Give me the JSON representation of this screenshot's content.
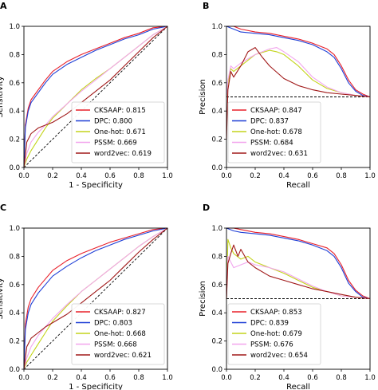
{
  "colors": {
    "series": [
      "#e8202a",
      "#1f3fd6",
      "#c3d41b",
      "#f2a6ee",
      "#a01818"
    ],
    "reference": "#000000",
    "axis": "#000000"
  },
  "chart_data": [
    {
      "panel": "A",
      "type": "line",
      "xlabel": "1 - Specificity",
      "ylabel": "Sensitivity",
      "xlim": [
        0,
        1
      ],
      "ylim": [
        0,
        1
      ],
      "xticks": [
        "0.0",
        "0.2",
        "0.4",
        "0.6",
        "0.8",
        "1.0"
      ],
      "yticks": [
        "0.0",
        "0.2",
        "0.4",
        "0.6",
        "0.8",
        "1.0"
      ],
      "legend_position": "bottom-right",
      "grid": false,
      "reference_line": {
        "style": "dashed",
        "from": [
          0,
          0
        ],
        "to": [
          1,
          1
        ]
      },
      "series": [
        {
          "name": "CKSAAP",
          "auc": "0.815",
          "x": [
            0,
            0.01,
            0.03,
            0.05,
            0.1,
            0.15,
            0.2,
            0.3,
            0.4,
            0.5,
            0.6,
            0.7,
            0.8,
            0.9,
            1.0
          ],
          "y": [
            0,
            0.3,
            0.42,
            0.48,
            0.55,
            0.62,
            0.68,
            0.75,
            0.8,
            0.84,
            0.88,
            0.92,
            0.95,
            0.99,
            1.0
          ]
        },
        {
          "name": "DPC",
          "auc": "0.800",
          "x": [
            0,
            0.01,
            0.03,
            0.05,
            0.1,
            0.15,
            0.2,
            0.3,
            0.4,
            0.5,
            0.6,
            0.7,
            0.8,
            0.9,
            1.0
          ],
          "y": [
            0,
            0.28,
            0.4,
            0.46,
            0.53,
            0.6,
            0.66,
            0.73,
            0.78,
            0.83,
            0.87,
            0.91,
            0.94,
            0.98,
            1.0
          ]
        },
        {
          "name": "One-hot",
          "auc": "0.671",
          "x": [
            0,
            0.02,
            0.05,
            0.1,
            0.15,
            0.2,
            0.3,
            0.4,
            0.5,
            0.6,
            0.7,
            0.8,
            0.9,
            1.0
          ],
          "y": [
            0,
            0.06,
            0.12,
            0.2,
            0.28,
            0.35,
            0.45,
            0.55,
            0.63,
            0.7,
            0.78,
            0.86,
            0.94,
            1.0
          ]
        },
        {
          "name": "PSSM",
          "auc": "0.669",
          "x": [
            0,
            0.02,
            0.05,
            0.1,
            0.15,
            0.2,
            0.3,
            0.4,
            0.5,
            0.6,
            0.7,
            0.8,
            0.9,
            1.0
          ],
          "y": [
            0,
            0.1,
            0.18,
            0.25,
            0.3,
            0.36,
            0.45,
            0.54,
            0.62,
            0.7,
            0.78,
            0.86,
            0.94,
            1.0
          ]
        },
        {
          "name": "word2vec",
          "auc": "0.619",
          "x": [
            0,
            0.02,
            0.05,
            0.1,
            0.15,
            0.2,
            0.3,
            0.4,
            0.5,
            0.6,
            0.7,
            0.8,
            0.9,
            1.0
          ],
          "y": [
            0,
            0.18,
            0.24,
            0.28,
            0.3,
            0.32,
            0.38,
            0.46,
            0.54,
            0.62,
            0.72,
            0.82,
            0.92,
            1.0
          ]
        }
      ]
    },
    {
      "panel": "B",
      "type": "line",
      "xlabel": "Recall",
      "ylabel": "Precision",
      "xlim": [
        0,
        1
      ],
      "ylim": [
        0,
        1
      ],
      "xticks": [
        "0.0",
        "0.2",
        "0.4",
        "0.6",
        "0.8",
        "1.0"
      ],
      "yticks": [
        "0.0",
        "0.2",
        "0.4",
        "0.6",
        "0.8",
        "1.0"
      ],
      "legend_position": "bottom-left",
      "grid": false,
      "reference_line": {
        "style": "dashed",
        "from": [
          0,
          0.5
        ],
        "to": [
          1,
          0.5
        ]
      },
      "series": [
        {
          "name": "CKSAAP",
          "auc": "0.847",
          "x": [
            0,
            0.05,
            0.1,
            0.2,
            0.3,
            0.4,
            0.5,
            0.6,
            0.7,
            0.75,
            0.8,
            0.85,
            0.9,
            0.95,
            1.0
          ],
          "y": [
            1.0,
            1.0,
            0.98,
            0.96,
            0.95,
            0.93,
            0.91,
            0.88,
            0.84,
            0.8,
            0.72,
            0.62,
            0.55,
            0.52,
            0.5
          ]
        },
        {
          "name": "DPC",
          "auc": "0.837",
          "x": [
            0,
            0.05,
            0.1,
            0.2,
            0.3,
            0.4,
            0.5,
            0.6,
            0.7,
            0.75,
            0.8,
            0.85,
            0.9,
            0.95,
            1.0
          ],
          "y": [
            1.0,
            0.98,
            0.96,
            0.95,
            0.94,
            0.92,
            0.9,
            0.87,
            0.82,
            0.78,
            0.7,
            0.6,
            0.54,
            0.51,
            0.5
          ]
        },
        {
          "name": "One-hot",
          "auc": "0.678",
          "x": [
            0,
            0.01,
            0.03,
            0.05,
            0.1,
            0.2,
            0.3,
            0.35,
            0.4,
            0.5,
            0.6,
            0.7,
            0.8,
            0.9,
            1.0
          ],
          "y": [
            0.5,
            0.6,
            0.7,
            0.68,
            0.72,
            0.8,
            0.83,
            0.82,
            0.8,
            0.72,
            0.62,
            0.56,
            0.53,
            0.51,
            0.5
          ]
        },
        {
          "name": "PSSM",
          "auc": "0.684",
          "x": [
            0,
            0.01,
            0.03,
            0.05,
            0.1,
            0.2,
            0.3,
            0.35,
            0.4,
            0.5,
            0.6,
            0.7,
            0.8,
            0.9,
            1.0
          ],
          "y": [
            0.5,
            0.62,
            0.72,
            0.7,
            0.74,
            0.8,
            0.84,
            0.85,
            0.82,
            0.75,
            0.64,
            0.57,
            0.53,
            0.51,
            0.5
          ]
        },
        {
          "name": "word2vec",
          "auc": "0.631",
          "x": [
            0,
            0.01,
            0.03,
            0.05,
            0.1,
            0.15,
            0.2,
            0.25,
            0.3,
            0.4,
            0.5,
            0.6,
            0.7,
            0.8,
            0.9,
            1.0
          ],
          "y": [
            0.2,
            0.55,
            0.68,
            0.64,
            0.72,
            0.82,
            0.85,
            0.78,
            0.72,
            0.63,
            0.58,
            0.55,
            0.53,
            0.52,
            0.51,
            0.5
          ]
        }
      ]
    },
    {
      "panel": "C",
      "type": "line",
      "xlabel": "1 - Specificity",
      "ylabel": "Sensitivity",
      "xlim": [
        0,
        1
      ],
      "ylim": [
        0,
        1
      ],
      "xticks": [
        "0.0",
        "0.2",
        "0.4",
        "0.6",
        "0.8",
        "1.0"
      ],
      "yticks": [
        "0.0",
        "0.2",
        "0.4",
        "0.6",
        "0.8",
        "1.0"
      ],
      "legend_position": "bottom-right",
      "grid": false,
      "reference_line": {
        "style": "dashed",
        "from": [
          0,
          0
        ],
        "to": [
          1,
          1
        ]
      },
      "series": [
        {
          "name": "CKSAAP",
          "auc": "0.827",
          "x": [
            0,
            0.01,
            0.03,
            0.05,
            0.1,
            0.15,
            0.2,
            0.3,
            0.4,
            0.5,
            0.6,
            0.7,
            0.8,
            0.9,
            1.0
          ],
          "y": [
            0,
            0.32,
            0.44,
            0.5,
            0.58,
            0.64,
            0.7,
            0.77,
            0.82,
            0.86,
            0.9,
            0.93,
            0.96,
            0.99,
            1.0
          ]
        },
        {
          "name": "DPC",
          "auc": "0.803",
          "x": [
            0,
            0.01,
            0.03,
            0.05,
            0.1,
            0.15,
            0.2,
            0.3,
            0.4,
            0.5,
            0.6,
            0.7,
            0.8,
            0.9,
            1.0
          ],
          "y": [
            0,
            0.28,
            0.4,
            0.46,
            0.54,
            0.6,
            0.66,
            0.73,
            0.79,
            0.84,
            0.88,
            0.92,
            0.95,
            0.98,
            1.0
          ]
        },
        {
          "name": "One-hot",
          "auc": "0.668",
          "x": [
            0,
            0.02,
            0.05,
            0.1,
            0.15,
            0.2,
            0.3,
            0.4,
            0.5,
            0.6,
            0.7,
            0.8,
            0.9,
            1.0
          ],
          "y": [
            0,
            0.05,
            0.1,
            0.18,
            0.26,
            0.34,
            0.45,
            0.55,
            0.63,
            0.71,
            0.79,
            0.87,
            0.94,
            1.0
          ]
        },
        {
          "name": "PSSM",
          "auc": "0.668",
          "x": [
            0,
            0.02,
            0.05,
            0.1,
            0.15,
            0.2,
            0.3,
            0.4,
            0.5,
            0.6,
            0.7,
            0.8,
            0.9,
            1.0
          ],
          "y": [
            0,
            0.08,
            0.16,
            0.24,
            0.3,
            0.36,
            0.46,
            0.55,
            0.63,
            0.71,
            0.79,
            0.87,
            0.94,
            1.0
          ]
        },
        {
          "name": "word2vec",
          "auc": "0.621",
          "x": [
            0,
            0.02,
            0.05,
            0.1,
            0.15,
            0.2,
            0.3,
            0.4,
            0.5,
            0.6,
            0.7,
            0.8,
            0.9,
            1.0
          ],
          "y": [
            0,
            0.16,
            0.22,
            0.26,
            0.3,
            0.33,
            0.39,
            0.47,
            0.55,
            0.63,
            0.73,
            0.83,
            0.92,
            1.0
          ]
        }
      ]
    },
    {
      "panel": "D",
      "type": "line",
      "xlabel": "Recall",
      "ylabel": "Precision",
      "xlim": [
        0,
        1
      ],
      "ylim": [
        0,
        1
      ],
      "xticks": [
        "0.0",
        "0.2",
        "0.4",
        "0.6",
        "0.8",
        "1.0"
      ],
      "yticks": [
        "0.0",
        "0.2",
        "0.4",
        "0.6",
        "0.8",
        "1.0"
      ],
      "legend_position": "bottom-left",
      "grid": false,
      "reference_line": {
        "style": "dashed",
        "from": [
          0,
          0.5
        ],
        "to": [
          1,
          0.5
        ]
      },
      "series": [
        {
          "name": "CKSAAP",
          "auc": "0.853",
          "x": [
            0,
            0.05,
            0.1,
            0.2,
            0.3,
            0.4,
            0.5,
            0.6,
            0.7,
            0.75,
            0.8,
            0.85,
            0.9,
            0.95,
            1.0
          ],
          "y": [
            1.0,
            1.0,
            0.99,
            0.97,
            0.96,
            0.94,
            0.92,
            0.89,
            0.86,
            0.82,
            0.74,
            0.63,
            0.56,
            0.52,
            0.5
          ]
        },
        {
          "name": "DPC",
          "auc": "0.839",
          "x": [
            0,
            0.05,
            0.1,
            0.2,
            0.3,
            0.4,
            0.5,
            0.6,
            0.7,
            0.75,
            0.8,
            0.85,
            0.9,
            0.95,
            1.0
          ],
          "y": [
            1.0,
            0.98,
            0.97,
            0.96,
            0.95,
            0.93,
            0.91,
            0.88,
            0.84,
            0.8,
            0.72,
            0.61,
            0.55,
            0.51,
            0.5
          ]
        },
        {
          "name": "One-hot",
          "auc": "0.679",
          "x": [
            0,
            0.01,
            0.03,
            0.05,
            0.1,
            0.15,
            0.2,
            0.3,
            0.4,
            0.5,
            0.6,
            0.7,
            0.8,
            0.9,
            1.0
          ],
          "y": [
            0.5,
            0.92,
            0.86,
            0.82,
            0.78,
            0.8,
            0.76,
            0.72,
            0.68,
            0.63,
            0.58,
            0.55,
            0.52,
            0.51,
            0.5
          ]
        },
        {
          "name": "PSSM",
          "auc": "0.676",
          "x": [
            0,
            0.01,
            0.03,
            0.05,
            0.1,
            0.15,
            0.2,
            0.3,
            0.4,
            0.5,
            0.6,
            0.7,
            0.8,
            0.9,
            1.0
          ],
          "y": [
            0.5,
            0.8,
            0.76,
            0.72,
            0.74,
            0.76,
            0.74,
            0.72,
            0.69,
            0.64,
            0.59,
            0.55,
            0.52,
            0.51,
            0.5
          ]
        },
        {
          "name": "word2vec",
          "auc": "0.654",
          "x": [
            0,
            0.01,
            0.03,
            0.05,
            0.08,
            0.1,
            0.15,
            0.2,
            0.3,
            0.4,
            0.5,
            0.6,
            0.7,
            0.8,
            0.9,
            1.0
          ],
          "y": [
            0.5,
            0.75,
            0.82,
            0.88,
            0.8,
            0.85,
            0.76,
            0.72,
            0.66,
            0.63,
            0.6,
            0.57,
            0.55,
            0.53,
            0.51,
            0.5
          ]
        }
      ]
    }
  ]
}
